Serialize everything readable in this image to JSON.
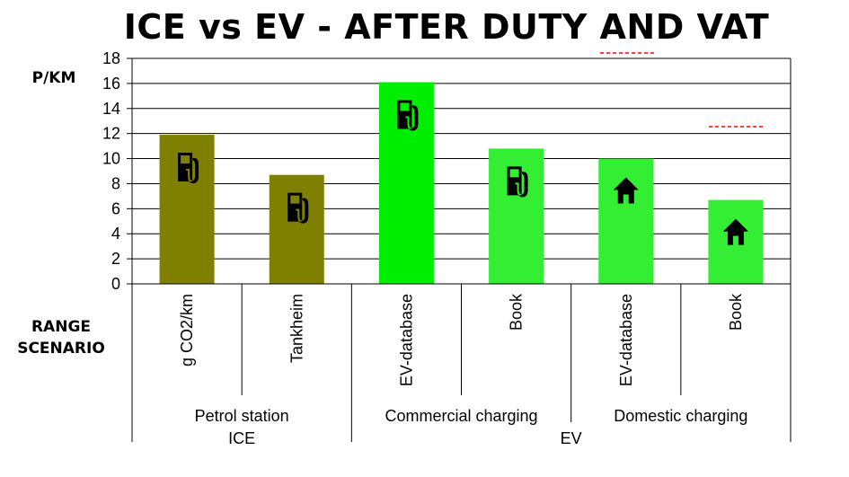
{
  "chart_data": {
    "type": "bar",
    "title": "ICE vs EV - AFTER DUTY AND VAT",
    "ylabel": "P/KM",
    "xlabel_lines": [
      "RANGE",
      "SCENARIO"
    ],
    "ylim": [
      0,
      18
    ],
    "yticks": [
      0,
      2,
      4,
      6,
      8,
      10,
      12,
      14,
      16,
      18
    ],
    "grid": true,
    "categories": [
      "g CO2/km",
      "Tankheim",
      "EV-database",
      "Book",
      "EV-database",
      "Book"
    ],
    "values": [
      11.9,
      8.7,
      16.1,
      10.8,
      10.0,
      6.7
    ],
    "bar_colors": [
      "#808000",
      "#808000",
      "#00ee00",
      "#33ee33",
      "#33ee33",
      "#33ee33"
    ],
    "bar_icons": [
      "fuel-pump",
      "fuel-pump",
      "fuel-pump",
      "fuel-pump",
      "house",
      "house"
    ],
    "groups": [
      {
        "label": "Petrol station",
        "span": 2
      },
      {
        "label": "Commercial charging",
        "span": 2
      },
      {
        "label": "Domestic charging",
        "span": 2
      }
    ],
    "super_groups": [
      {
        "label": "ICE",
        "span": 2
      },
      {
        "label": "EV",
        "span": 4
      }
    ],
    "annotations": {
      "dashed_color": "#ff0000"
    }
  }
}
